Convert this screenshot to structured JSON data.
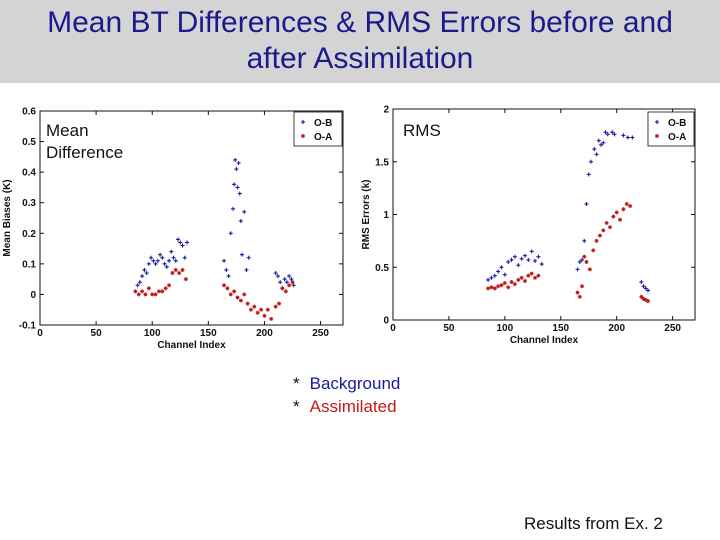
{
  "title": {
    "line1": "Mean BT Differences & RMS Errors before and",
    "line2": "after Assimilation"
  },
  "key": {
    "star": "*",
    "background": "Background",
    "assimilated": "Assimilated",
    "colors": {
      "background": "#1a1aa0",
      "assimilated": "#c01a1a"
    }
  },
  "footer_note": "Results from Ex. 2",
  "chart_data": [
    {
      "type": "scatter",
      "panel_label": [
        "Mean",
        "Difference"
      ],
      "xlabel": "Channel Index",
      "ylabel": "Mean Biases (K)",
      "xlim": [
        0,
        270
      ],
      "ylim": [
        -0.1,
        0.6
      ],
      "xticks": [
        "0",
        "50",
        "100",
        "150",
        "200",
        "250"
      ],
      "xtick_values": [
        0,
        50,
        100,
        150,
        200,
        250
      ],
      "yticks": [
        "-0.1",
        "0",
        "0.1",
        "0.2",
        "0.3",
        "0.4",
        "0.5",
        "0.6"
      ],
      "ytick_values": [
        -0.1,
        0,
        0.1,
        0.2,
        0.3,
        0.4,
        0.5,
        0.6
      ],
      "legend_position": "top-right",
      "series": [
        {
          "name": "O-B",
          "color": "#1a1aa0",
          "x": [
            87,
            89,
            91,
            93,
            95,
            97,
            99,
            101,
            103,
            105,
            107,
            109,
            111,
            113,
            115,
            117,
            119,
            121,
            123,
            125,
            127,
            129,
            131,
            164,
            166,
            168,
            170,
            172,
            173,
            174,
            175,
            176,
            177,
            178,
            179,
            180,
            182,
            184,
            186,
            210,
            212,
            214,
            216,
            218,
            220,
            222,
            224,
            226
          ],
          "y": [
            0.03,
            0.04,
            0.06,
            0.08,
            0.07,
            0.1,
            0.12,
            0.11,
            0.1,
            0.11,
            0.13,
            0.12,
            0.1,
            0.09,
            0.11,
            0.14,
            0.12,
            0.11,
            0.18,
            0.17,
            0.16,
            0.12,
            0.17,
            0.11,
            0.08,
            0.06,
            0.2,
            0.28,
            0.36,
            0.44,
            0.41,
            0.35,
            0.43,
            0.33,
            0.24,
            0.13,
            0.27,
            0.08,
            0.12,
            0.07,
            0.06,
            0.04,
            0.02,
            0.05,
            0.04,
            0.06,
            0.05,
            0.03
          ]
        },
        {
          "name": "O-A",
          "color": "#c01a1a",
          "x": [
            85,
            88,
            91,
            94,
            97,
            100,
            103,
            106,
            109,
            112,
            115,
            118,
            121,
            124,
            127,
            130,
            164,
            167,
            170,
            173,
            176,
            179,
            182,
            185,
            188,
            191,
            194,
            197,
            200,
            203,
            206,
            210,
            213,
            216,
            219,
            222,
            225
          ],
          "y": [
            0.01,
            0.0,
            0.01,
            0.0,
            0.02,
            0.0,
            0.0,
            0.01,
            0.01,
            0.02,
            0.03,
            0.07,
            0.08,
            0.07,
            0.08,
            0.05,
            0.03,
            0.02,
            0.0,
            0.01,
            -0.01,
            -0.02,
            0.0,
            -0.03,
            -0.05,
            -0.04,
            -0.06,
            -0.05,
            -0.07,
            -0.05,
            -0.08,
            -0.04,
            -0.03,
            0.02,
            0.01,
            0.03,
            0.04
          ]
        }
      ]
    },
    {
      "type": "scatter",
      "panel_label": [
        "RMS"
      ],
      "xlabel": "Channel Index",
      "ylabel": "RMS Errors (k)",
      "xlim": [
        0,
        270
      ],
      "ylim": [
        0,
        2
      ],
      "xticks": [
        "0",
        "50",
        "100",
        "150",
        "200",
        "250"
      ],
      "xtick_values": [
        0,
        50,
        100,
        150,
        200,
        250
      ],
      "yticks": [
        "0",
        "0.5",
        "1",
        "1.5",
        "2"
      ],
      "ytick_values": [
        0,
        0.5,
        1,
        1.5,
        2
      ],
      "legend_position": "top-right",
      "series": [
        {
          "name": "O-B",
          "color": "#1a1aa0",
          "x": [
            85,
            88,
            91,
            94,
            97,
            100,
            103,
            106,
            109,
            112,
            115,
            118,
            121,
            124,
            127,
            130,
            133,
            165,
            167,
            169,
            171,
            173,
            175,
            177,
            180,
            182,
            184,
            186,
            188,
            190,
            192,
            196,
            198,
            206,
            210,
            214,
            222,
            224,
            226,
            228
          ],
          "y": [
            0.38,
            0.4,
            0.42,
            0.46,
            0.5,
            0.43,
            0.55,
            0.57,
            0.6,
            0.52,
            0.58,
            0.61,
            0.57,
            0.65,
            0.56,
            0.6,
            0.53,
            0.48,
            0.55,
            0.57,
            0.75,
            1.1,
            1.38,
            1.5,
            1.62,
            1.57,
            1.7,
            1.66,
            1.68,
            1.78,
            1.76,
            1.78,
            1.76,
            1.75,
            1.73,
            1.73,
            0.36,
            0.32,
            0.3,
            0.28
          ]
        },
        {
          "name": "O-A",
          "color": "#c01a1a",
          "x": [
            85,
            88,
            91,
            94,
            97,
            100,
            103,
            106,
            109,
            112,
            115,
            118,
            121,
            124,
            127,
            130,
            165,
            167,
            169,
            171,
            173,
            176,
            179,
            182,
            185,
            188,
            191,
            194,
            197,
            200,
            203,
            206,
            209,
            212,
            222,
            224,
            226,
            228
          ],
          "y": [
            0.3,
            0.31,
            0.3,
            0.32,
            0.33,
            0.35,
            0.31,
            0.36,
            0.34,
            0.38,
            0.4,
            0.37,
            0.42,
            0.44,
            0.4,
            0.42,
            0.26,
            0.22,
            0.32,
            0.6,
            0.55,
            0.48,
            0.66,
            0.75,
            0.8,
            0.85,
            0.92,
            0.88,
            0.98,
            1.02,
            0.95,
            1.05,
            1.1,
            1.08,
            0.22,
            0.2,
            0.19,
            0.18
          ]
        }
      ]
    }
  ]
}
